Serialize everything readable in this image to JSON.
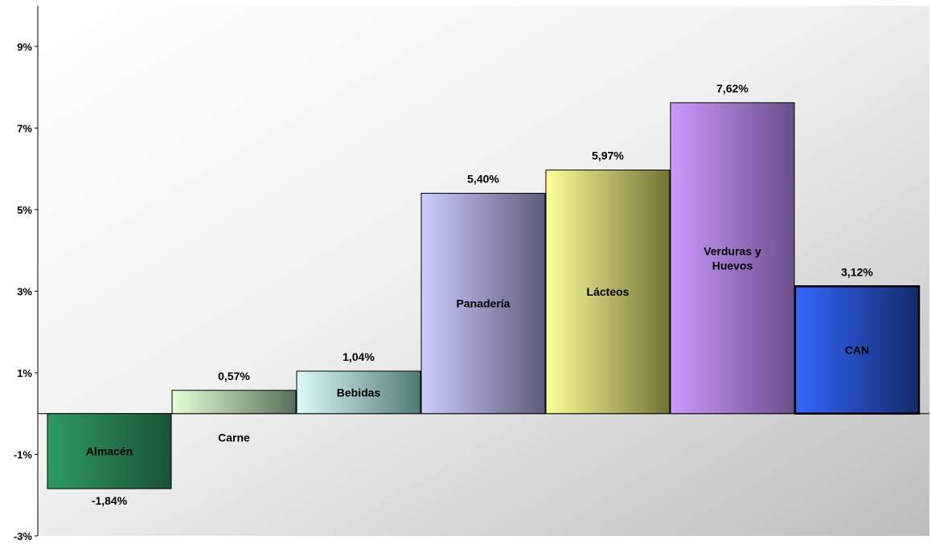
{
  "chart_data": {
    "type": "bar",
    "categories": [
      "Almacén",
      "Carne",
      "Bebidas",
      "Panadería",
      "Lácteos",
      "Verduras y Huevos",
      "CAN"
    ],
    "category_lines": [
      [
        "Almacén"
      ],
      [
        "Carne"
      ],
      [
        "Bebidas"
      ],
      [
        "Panadería"
      ],
      [
        "Lácteos"
      ],
      [
        "Verduras y",
        "Huevos"
      ],
      [
        "CAN"
      ]
    ],
    "values": [
      -1.84,
      0.57,
      1.04,
      5.4,
      5.97,
      7.62,
      3.12
    ],
    "value_labels": [
      "-1,84%",
      "0,57%",
      "1,04%",
      "5,40%",
      "5,97%",
      "7,62%",
      "3,12%"
    ],
    "ylim": [
      -3,
      10
    ],
    "y_ticks": [
      -3,
      -1,
      1,
      3,
      5,
      7,
      9
    ],
    "y_tick_labels": [
      "-3%",
      "-1%",
      "1%",
      "3%",
      "5%",
      "7%",
      "9%"
    ],
    "title": "",
    "xlabel": "",
    "ylabel": "",
    "legend": "none",
    "grid": false,
    "colors": {
      "Almacén": [
        "#2e9a62",
        "#1b5236"
      ],
      "Carne": [
        "#e6ffd6",
        "#58705a"
      ],
      "Bebidas": [
        "#ddfcfc",
        "#4f7a78"
      ],
      "Panadería": [
        "#ccccff",
        "#5c5c7a"
      ],
      "Lácteos": [
        "#ffff99",
        "#727234"
      ],
      "Verduras y Huevos": [
        "#cc99ff",
        "#6b4e8a"
      ],
      "CAN": [
        "#3366ff",
        "#152a6a"
      ]
    }
  }
}
